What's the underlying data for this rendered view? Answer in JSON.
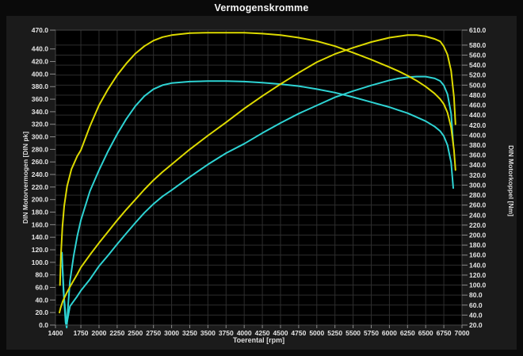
{
  "title": "Vermogenskromme",
  "chart_data": {
    "type": "line",
    "title": "Vermogenskromme",
    "xlabel": "Toerental [rpm]",
    "ylabel_left": "DIN Motorvermogen [DIN pk]",
    "ylabel_right": "DIN Motorkoppel [Nm]",
    "xlim": [
      1400,
      7000
    ],
    "ylim_left": [
      0,
      470
    ],
    "ylim_right": [
      20,
      610
    ],
    "x_ticks": [
      1400,
      1750,
      2000,
      2250,
      2500,
      2750,
      3000,
      3250,
      3500,
      3750,
      4000,
      4250,
      4500,
      4750,
      5000,
      5250,
      5500,
      5750,
      6000,
      6250,
      6500,
      6750,
      7000
    ],
    "y_ticks_left": [
      0,
      20,
      40,
      60,
      80,
      100,
      120,
      140,
      160,
      180,
      200,
      220,
      240,
      260,
      280,
      300,
      320,
      340,
      360,
      380,
      400,
      420,
      440,
      470
    ],
    "y_ticks_right": [
      20,
      40,
      60,
      80,
      100,
      120,
      140,
      160,
      180,
      200,
      220,
      240,
      260,
      280,
      300,
      320,
      340,
      360,
      380,
      400,
      420,
      440,
      460,
      480,
      500,
      520,
      540,
      560,
      580,
      610
    ],
    "grid": true,
    "grid_horizontal_from": "right_axis",
    "legend": "none",
    "colors": {
      "yellow_run": "#ddda00",
      "cyan_run": "#2ed3d3",
      "plot_bg": "#000000",
      "grid": "#2d2d2d",
      "frame": "#424242",
      "tick_text": "#e6e6e6"
    },
    "series": [
      {
        "name": "cyan-power",
        "axis": "left",
        "color_key": "cyan_run",
        "points": [
          [
            1495,
            95
          ],
          [
            1515,
            50
          ],
          [
            1545,
            8
          ],
          [
            1560,
            5
          ],
          [
            1580,
            18
          ],
          [
            1600,
            30
          ],
          [
            1650,
            38
          ],
          [
            1700,
            46
          ],
          [
            1750,
            55
          ],
          [
            1875,
            73
          ],
          [
            2000,
            94
          ],
          [
            2125,
            111
          ],
          [
            2250,
            129
          ],
          [
            2375,
            146
          ],
          [
            2500,
            163
          ],
          [
            2625,
            179
          ],
          [
            2750,
            193
          ],
          [
            2875,
            205
          ],
          [
            3000,
            215
          ],
          [
            3250,
            236
          ],
          [
            3500,
            256
          ],
          [
            3750,
            274
          ],
          [
            4000,
            289
          ],
          [
            4250,
            306
          ],
          [
            4500,
            322
          ],
          [
            4750,
            337
          ],
          [
            5000,
            350
          ],
          [
            5250,
            363
          ],
          [
            5500,
            373
          ],
          [
            5750,
            382
          ],
          [
            6000,
            390
          ],
          [
            6125,
            393
          ],
          [
            6250,
            395
          ],
          [
            6375,
            396
          ],
          [
            6500,
            396
          ],
          [
            6625,
            393
          ],
          [
            6700,
            389
          ],
          [
            6750,
            382
          ],
          [
            6800,
            368
          ],
          [
            6850,
            337
          ],
          [
            6880,
            288
          ]
        ]
      },
      {
        "name": "cyan-torque",
        "axis": "right",
        "color_key": "cyan_run",
        "points": [
          [
            1490,
            165
          ],
          [
            1510,
            90
          ],
          [
            1540,
            25
          ],
          [
            1555,
            15
          ],
          [
            1575,
            60
          ],
          [
            1600,
            108
          ],
          [
            1650,
            158
          ],
          [
            1700,
            198
          ],
          [
            1750,
            230
          ],
          [
            1875,
            288
          ],
          [
            2000,
            330
          ],
          [
            2125,
            368
          ],
          [
            2250,
            402
          ],
          [
            2375,
            432
          ],
          [
            2500,
            458
          ],
          [
            2625,
            478
          ],
          [
            2750,
            492
          ],
          [
            2875,
            500
          ],
          [
            3000,
            504
          ],
          [
            3250,
            507
          ],
          [
            3500,
            508
          ],
          [
            3750,
            508
          ],
          [
            4000,
            507
          ],
          [
            4250,
            505
          ],
          [
            4500,
            502
          ],
          [
            4750,
            498
          ],
          [
            5000,
            492
          ],
          [
            5250,
            485
          ],
          [
            5500,
            476
          ],
          [
            5750,
            466
          ],
          [
            6000,
            456
          ],
          [
            6125,
            450
          ],
          [
            6250,
            444
          ],
          [
            6375,
            436
          ],
          [
            6500,
            428
          ],
          [
            6625,
            417
          ],
          [
            6700,
            408
          ],
          [
            6750,
            398
          ],
          [
            6800,
            380
          ],
          [
            6850,
            345
          ],
          [
            6880,
            294
          ]
        ]
      },
      {
        "name": "yellow-power",
        "axis": "left",
        "color_key": "yellow_run",
        "points": [
          [
            1455,
            20
          ],
          [
            1470,
            27
          ],
          [
            1500,
            38
          ],
          [
            1550,
            50
          ],
          [
            1600,
            61
          ],
          [
            1650,
            71
          ],
          [
            1700,
            81
          ],
          [
            1750,
            92
          ],
          [
            1875,
            112
          ],
          [
            2000,
            131
          ],
          [
            2125,
            149
          ],
          [
            2250,
            167
          ],
          [
            2375,
            184
          ],
          [
            2500,
            200
          ],
          [
            2625,
            216
          ],
          [
            2750,
            231
          ],
          [
            2875,
            244
          ],
          [
            3000,
            256
          ],
          [
            3125,
            268
          ],
          [
            3250,
            280
          ],
          [
            3500,
            302
          ],
          [
            3750,
            323
          ],
          [
            4000,
            345
          ],
          [
            4250,
            365
          ],
          [
            4500,
            384
          ],
          [
            4750,
            402
          ],
          [
            5000,
            419
          ],
          [
            5250,
            432
          ],
          [
            5500,
            442
          ],
          [
            5750,
            451
          ],
          [
            6000,
            458
          ],
          [
            6125,
            460
          ],
          [
            6250,
            462
          ],
          [
            6375,
            462
          ],
          [
            6500,
            460
          ],
          [
            6625,
            456
          ],
          [
            6700,
            452
          ],
          [
            6750,
            444
          ],
          [
            6800,
            431
          ],
          [
            6850,
            405
          ],
          [
            6890,
            363
          ],
          [
            6910,
            320
          ]
        ]
      },
      {
        "name": "yellow-torque",
        "axis": "right",
        "color_key": "yellow_run",
        "points": [
          [
            1462,
            100
          ],
          [
            1475,
            160
          ],
          [
            1495,
            215
          ],
          [
            1520,
            258
          ],
          [
            1560,
            298
          ],
          [
            1620,
            332
          ],
          [
            1700,
            358
          ],
          [
            1750,
            370
          ],
          [
            1875,
            418
          ],
          [
            2000,
            460
          ],
          [
            2125,
            492
          ],
          [
            2250,
            520
          ],
          [
            2375,
            543
          ],
          [
            2500,
            563
          ],
          [
            2625,
            578
          ],
          [
            2750,
            589
          ],
          [
            2875,
            596
          ],
          [
            3000,
            600
          ],
          [
            3125,
            602
          ],
          [
            3250,
            604
          ],
          [
            3500,
            605
          ],
          [
            3750,
            605
          ],
          [
            4000,
            605
          ],
          [
            4250,
            603
          ],
          [
            4500,
            600
          ],
          [
            4750,
            595
          ],
          [
            5000,
            588
          ],
          [
            5250,
            578
          ],
          [
            5500,
            565
          ],
          [
            5750,
            551
          ],
          [
            6000,
            536
          ],
          [
            6125,
            528
          ],
          [
            6250,
            519
          ],
          [
            6375,
            509
          ],
          [
            6500,
            497
          ],
          [
            6625,
            483
          ],
          [
            6700,
            472
          ],
          [
            6750,
            462
          ],
          [
            6800,
            445
          ],
          [
            6850,
            415
          ],
          [
            6890,
            370
          ],
          [
            6910,
            330
          ]
        ]
      }
    ]
  }
}
